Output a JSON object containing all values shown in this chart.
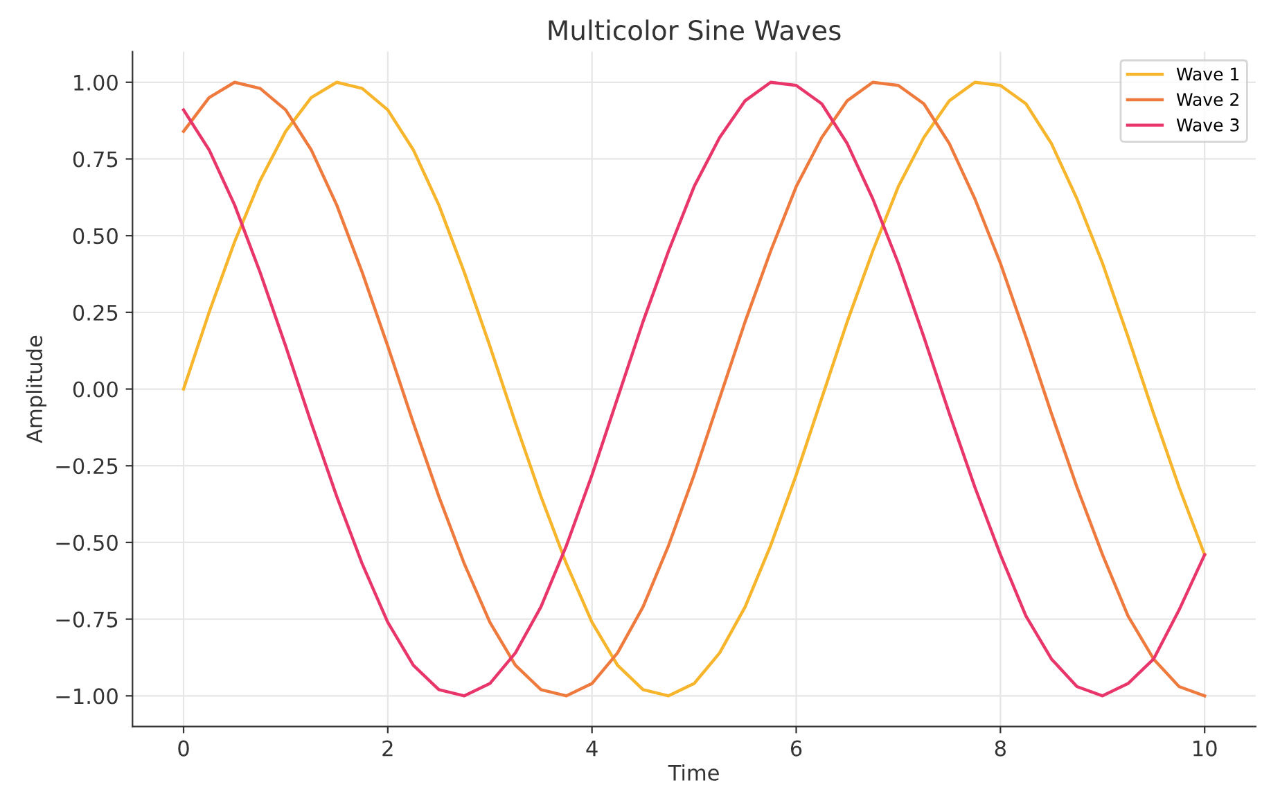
{
  "chart_data": {
    "type": "line",
    "title": "Multicolor Sine Waves",
    "xlabel": "Time",
    "ylabel": "Amplitude",
    "x": [
      0,
      0.25,
      0.5,
      0.75,
      1,
      1.25,
      1.5,
      1.75,
      2,
      2.25,
      2.5,
      2.75,
      3,
      3.25,
      3.5,
      3.75,
      4,
      4.25,
      4.5,
      4.75,
      5,
      5.25,
      5.5,
      5.75,
      6,
      6.25,
      6.5,
      6.75,
      7,
      7.25,
      7.5,
      7.75,
      8,
      8.25,
      8.5,
      8.75,
      9,
      9.25,
      9.5,
      9.75,
      10
    ],
    "series": [
      {
        "name": "Wave 1",
        "color": "#f7b52c",
        "values": [
          0,
          0.25,
          0.48,
          0.68,
          0.84,
          0.95,
          1.0,
          0.98,
          0.91,
          0.78,
          0.6,
          0.38,
          0.14,
          -0.11,
          -0.35,
          -0.57,
          -0.76,
          -0.9,
          -0.98,
          -1.0,
          -0.96,
          -0.86,
          -0.71,
          -0.51,
          -0.28,
          -0.03,
          0.22,
          0.45,
          0.66,
          0.82,
          0.94,
          1.0,
          0.99,
          0.93,
          0.8,
          0.62,
          0.41,
          0.17,
          -0.08,
          -0.32,
          -0.54
        ]
      },
      {
        "name": "Wave 2",
        "color": "#ef7a3e",
        "values": [
          0.84,
          0.95,
          1.0,
          0.98,
          0.91,
          0.78,
          0.6,
          0.38,
          0.14,
          -0.11,
          -0.35,
          -0.57,
          -0.76,
          -0.9,
          -0.98,
          -1.0,
          -0.96,
          -0.86,
          -0.71,
          -0.51,
          -0.28,
          -0.03,
          0.22,
          0.45,
          0.66,
          0.82,
          0.94,
          1.0,
          0.99,
          0.93,
          0.8,
          0.62,
          0.41,
          0.17,
          -0.08,
          -0.32,
          -0.54,
          -0.74,
          -0.88,
          -0.97,
          -1.0
        ]
      },
      {
        "name": "Wave 3",
        "color": "#e8356a",
        "values": [
          0.91,
          0.78,
          0.6,
          0.38,
          0.14,
          -0.11,
          -0.35,
          -0.57,
          -0.76,
          -0.9,
          -0.98,
          -1.0,
          -0.96,
          -0.86,
          -0.71,
          -0.51,
          -0.28,
          -0.03,
          0.22,
          0.45,
          0.66,
          0.82,
          0.94,
          1.0,
          0.99,
          0.93,
          0.8,
          0.62,
          0.41,
          0.17,
          -0.08,
          -0.32,
          -0.54,
          -0.74,
          -0.88,
          -0.97,
          -1.0,
          -0.96,
          -0.88,
          -0.72,
          -0.54
        ]
      }
    ],
    "xlim": [
      -0.5,
      10.5
    ],
    "ylim": [
      -1.1,
      1.1
    ],
    "xticks": [
      0,
      2,
      4,
      6,
      8,
      10
    ],
    "yticks": [
      {
        "value": -1,
        "label": "−1.00"
      },
      {
        "value": -0.75,
        "label": "−0.75"
      },
      {
        "value": -0.5,
        "label": "−0.50"
      },
      {
        "value": -0.25,
        "label": "−0.25"
      },
      {
        "value": 0,
        "label": "0.00"
      },
      {
        "value": 0.25,
        "label": "0.25"
      },
      {
        "value": 0.5,
        "label": "0.50"
      },
      {
        "value": 0.75,
        "label": "0.75"
      },
      {
        "value": 1,
        "label": "1.00"
      }
    ],
    "grid": true,
    "legend": "top right",
    "line_style": "solid"
  }
}
